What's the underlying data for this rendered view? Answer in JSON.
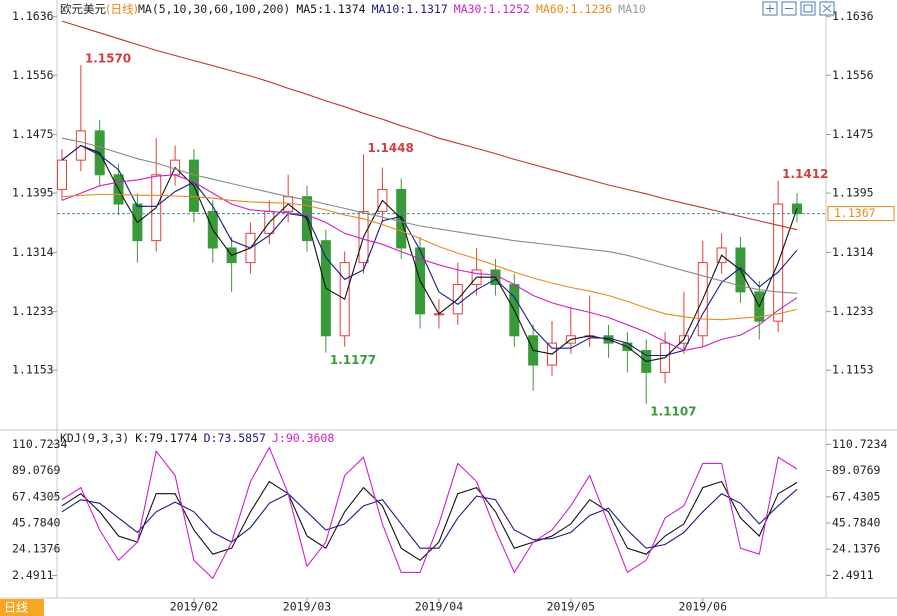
{
  "toolbar": {
    "period_tab": "日线"
  },
  "chart_data": [
    {
      "type": "candlestick",
      "title": "欧元美元",
      "period": "(日线)",
      "indicator": "MA(5,10,30,60,100,200)",
      "legend_separator": ":",
      "legend_overflow": "MA10",
      "categories": [
        null,
        null,
        null,
        null,
        null,
        null,
        null,
        "2019/02",
        null,
        null,
        null,
        null,
        null,
        "2019/03",
        null,
        null,
        null,
        null,
        null,
        null,
        "2019/04",
        null,
        null,
        null,
        null,
        null,
        null,
        "2019/05",
        null,
        null,
        null,
        null,
        null,
        null,
        "2019/06",
        null,
        null,
        null,
        null,
        null
      ],
      "open": [
        1.14,
        1.144,
        1.148,
        1.142,
        1.138,
        1.133,
        1.142,
        1.144,
        1.137,
        1.132,
        1.13,
        1.134,
        1.137,
        1.139,
        1.133,
        1.12,
        1.13,
        1.137,
        1.14,
        1.132,
        1.123,
        1.123,
        1.127,
        1.129,
        1.127,
        1.12,
        1.116,
        1.119,
        1.12,
        1.12,
        1.119,
        1.118,
        1.115,
        1.119,
        1.12,
        1.13,
        1.132,
        1.126,
        1.122,
        1.138
      ],
      "high": [
        1.1455,
        1.157,
        1.1495,
        1.1435,
        1.1395,
        1.147,
        1.146,
        1.1455,
        1.1385,
        1.1335,
        1.1355,
        1.1385,
        1.142,
        1.1405,
        1.1345,
        1.1315,
        1.1448,
        1.143,
        1.1415,
        1.1335,
        1.125,
        1.13,
        1.132,
        1.1305,
        1.1285,
        1.1215,
        1.122,
        1.124,
        1.1255,
        1.1215,
        1.1205,
        1.1195,
        1.1205,
        1.126,
        1.133,
        1.134,
        1.1335,
        1.1275,
        1.1412,
        1.1395
      ],
      "low": [
        1.1385,
        1.1425,
        1.1405,
        1.1365,
        1.13,
        1.1315,
        1.1405,
        1.1355,
        1.13,
        1.126,
        1.1285,
        1.1325,
        1.1355,
        1.1315,
        1.1177,
        1.1185,
        1.1285,
        1.1355,
        1.1305,
        1.121,
        1.121,
        1.1215,
        1.1255,
        1.1255,
        1.1185,
        1.1125,
        1.1145,
        1.1175,
        1.1185,
        1.117,
        1.115,
        1.1107,
        1.1135,
        1.1175,
        1.1185,
        1.1285,
        1.1245,
        1.1195,
        1.1205,
        1.1355
      ],
      "close": [
        1.144,
        1.148,
        1.142,
        1.138,
        1.133,
        1.142,
        1.144,
        1.137,
        1.132,
        1.13,
        1.134,
        1.137,
        1.139,
        1.133,
        1.12,
        1.13,
        1.137,
        1.14,
        1.132,
        1.123,
        1.123,
        1.127,
        1.129,
        1.127,
        1.12,
        1.116,
        1.119,
        1.12,
        1.12,
        1.119,
        1.118,
        1.115,
        1.119,
        1.12,
        1.13,
        1.132,
        1.126,
        1.122,
        1.138,
        1.1367
      ],
      "up_color": "#e0403a",
      "down_color": "#3a9a3a",
      "series": [
        {
          "name": "MA5",
          "color": "#111111",
          "values": [
            1.144,
            1.146,
            1.145,
            1.14,
            1.1355,
            1.1375,
            1.143,
            1.1405,
            1.1345,
            1.131,
            1.132,
            1.1355,
            1.138,
            1.136,
            1.1265,
            1.125,
            1.1335,
            1.1385,
            1.136,
            1.1275,
            1.123,
            1.125,
            1.128,
            1.128,
            1.1235,
            1.118,
            1.1175,
            1.1195,
            1.12,
            1.1195,
            1.1185,
            1.1165,
            1.117,
            1.1195,
            1.125,
            1.131,
            1.129,
            1.124,
            1.13,
            1.1374
          ]
        },
        {
          "name": "MA10",
          "color": "#1a1a8c",
          "values": [
            1.144,
            1.146,
            1.1447,
            1.1427,
            1.1377,
            1.1377,
            1.1397,
            1.141,
            1.1377,
            1.133,
            1.132,
            1.1337,
            1.1367,
            1.1363,
            1.1307,
            1.1277,
            1.129,
            1.1357,
            1.1363,
            1.1317,
            1.126,
            1.1243,
            1.1263,
            1.1277,
            1.1253,
            1.121,
            1.1183,
            1.1183,
            1.1197,
            1.1197,
            1.119,
            1.1173,
            1.1173,
            1.118,
            1.123,
            1.1273,
            1.1293,
            1.1267,
            1.1287,
            1.1317
          ]
        },
        {
          "name": "MA30",
          "color": "#d020c8",
          "values": [
            1.1385,
            1.1395,
            1.1405,
            1.141,
            1.1413,
            1.1418,
            1.142,
            1.141,
            1.1395,
            1.138,
            1.1372,
            1.137,
            1.1368,
            1.1365,
            1.1355,
            1.134,
            1.1332,
            1.1325,
            1.1315,
            1.1305,
            1.1297,
            1.129,
            1.1285,
            1.1283,
            1.127,
            1.1255,
            1.1245,
            1.1238,
            1.1232,
            1.1225,
            1.1215,
            1.1205,
            1.1192,
            1.118,
            1.1185,
            1.1195,
            1.1201,
            1.1215,
            1.1235,
            1.1252
          ]
        },
        {
          "name": "MA60",
          "color": "#e8891a",
          "values": [
            1.139,
            1.1392,
            1.1393,
            1.1393,
            1.1392,
            1.1392,
            1.1391,
            1.139,
            1.1388,
            1.1385,
            1.1383,
            1.1382,
            1.1381,
            1.1378,
            1.1372,
            1.1365,
            1.136,
            1.1352,
            1.1343,
            1.1333,
            1.1322,
            1.1313,
            1.1305,
            1.1296,
            1.1287,
            1.1279,
            1.1272,
            1.1266,
            1.1261,
            1.1255,
            1.1247,
            1.1238,
            1.123,
            1.1226,
            1.1223,
            1.1222,
            1.1224,
            1.1226,
            1.123,
            1.1236
          ]
        },
        {
          "color": "#8a8a8a",
          "values": [
            1.147,
            1.1465,
            1.1458,
            1.145,
            1.1442,
            1.1436,
            1.1428,
            1.142,
            1.1414,
            1.1408,
            1.1402,
            1.1396,
            1.139,
            1.1386,
            1.138,
            1.1374,
            1.1368,
            1.1362,
            1.1356,
            1.135,
            1.1346,
            1.1342,
            1.1338,
            1.1334,
            1.133,
            1.1327,
            1.1324,
            1.1321,
            1.1318,
            1.1315,
            1.131,
            1.1303,
            1.1296,
            1.1289,
            1.1282,
            1.1275,
            1.1268,
            1.1263,
            1.126,
            1.1258
          ]
        },
        {
          "color": "#c0392b",
          "values": [
            1.163,
            1.1622,
            1.1614,
            1.1606,
            1.1598,
            1.159,
            1.1583,
            1.1576,
            1.1569,
            1.1562,
            1.1555,
            1.1547,
            1.1538,
            1.153,
            1.1521,
            1.1513,
            1.1504,
            1.1496,
            1.1487,
            1.1479,
            1.147,
            1.1463,
            1.1456,
            1.1449,
            1.1441,
            1.1434,
            1.1427,
            1.142,
            1.1413,
            1.1406,
            1.14,
            1.1394,
            1.1387,
            1.1381,
            1.1375,
            1.1369,
            1.1363,
            1.1357,
            1.1351,
            1.1345
          ]
        }
      ],
      "annotations": [
        {
          "text": "1.1570",
          "value": 1.157
        },
        {
          "text": "1.1448",
          "value": 1.1448
        },
        {
          "text": "1.1177",
          "value": 1.1177
        },
        {
          "text": "1.1107",
          "value": 1.1107
        },
        {
          "text": "1.1412",
          "value": 1.1412
        }
      ],
      "last_price": 1.1367,
      "ylim": [
        1.1074,
        1.1652
      ],
      "yticks": [
        1.1153,
        1.1233,
        1.1314,
        1.1395,
        1.1475,
        1.1556,
        1.1636
      ]
    },
    {
      "type": "line",
      "indicator": "KDJ(9,3,3)",
      "legend_separator": ":",
      "series": [
        {
          "name": "K",
          "color": "#111111",
          "values": [
            60,
            70,
            55,
            35,
            30,
            70,
            70,
            40,
            20,
            25,
            55,
            80,
            70,
            35,
            25,
            55,
            75,
            60,
            25,
            15,
            30,
            70,
            75,
            55,
            25,
            30,
            35,
            45,
            65,
            55,
            25,
            20,
            35,
            45,
            75,
            80,
            50,
            35,
            70,
            79.1774
          ]
        },
        {
          "name": "D",
          "color": "#1a1a8c",
          "values": [
            55,
            65,
            62,
            50,
            38,
            55,
            63,
            55,
            38,
            30,
            42,
            62,
            70,
            55,
            40,
            45,
            60,
            65,
            45,
            25,
            25,
            50,
            68,
            65,
            40,
            32,
            33,
            38,
            52,
            58,
            40,
            25,
            28,
            38,
            55,
            70,
            62,
            45,
            60,
            73.5857
          ]
        },
        {
          "name": "J",
          "color": "#d020c8",
          "values": [
            65,
            75,
            40,
            15,
            30,
            105,
            85,
            15,
            0,
            30,
            80,
            108,
            70,
            10,
            30,
            85,
            100,
            45,
            5,
            5,
            45,
            95,
            80,
            40,
            5,
            30,
            40,
            60,
            85,
            45,
            5,
            15,
            50,
            60,
            95,
            95,
            25,
            20,
            100,
            90.3608
          ]
        }
      ],
      "ylim": [
        -14.5,
        120.9
      ],
      "yticks": [
        2.4911,
        24.1376,
        {
          "value": 45.784,
          "label": "45.7840"
        },
        67.4305,
        89.0769,
        110.7234
      ]
    }
  ]
}
